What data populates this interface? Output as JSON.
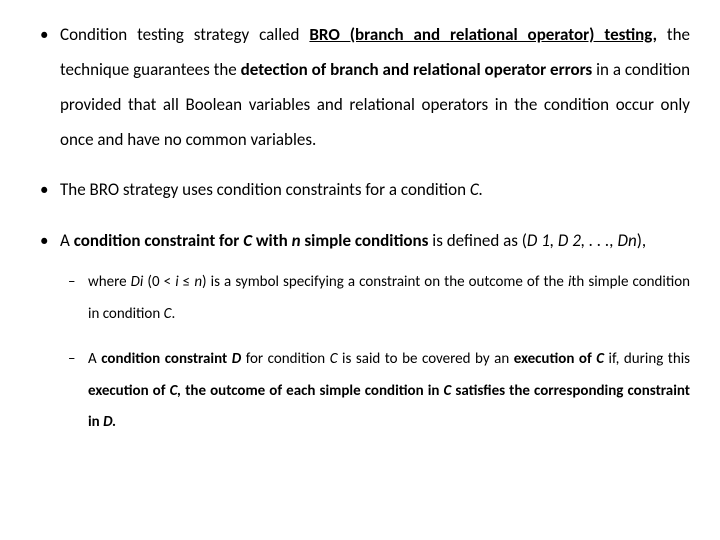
{
  "slide": {
    "bullets": [
      {
        "runs": [
          {
            "t": "Condition testing strategy called "
          },
          {
            "t": "BRO (branch and relational operator) testing,",
            "cls": "bu"
          },
          {
            "t": " the technique guarantees the "
          },
          {
            "t": "detection of branch and relational operator errors",
            "cls": "b"
          },
          {
            "t": " in a condition provided that all Boolean variables and relational operators in the condition occur only once and have no common variables."
          }
        ]
      },
      {
        "runs": [
          {
            "t": "The BRO strategy uses condition constraints for a condition "
          },
          {
            "t": "C.",
            "cls": "i"
          }
        ]
      },
      {
        "runs": [
          {
            "t": "A "
          },
          {
            "t": "condition constraint for ",
            "cls": "b"
          },
          {
            "t": "C",
            "cls": "bi"
          },
          {
            "t": " with ",
            "cls": "b"
          },
          {
            "t": "n",
            "cls": "bi"
          },
          {
            "t": " simple conditions",
            "cls": "b"
          },
          {
            "t": " is defined as ("
          },
          {
            "t": "D 1, D 2, . . ., Dn",
            "cls": "i"
          },
          {
            "t": "),"
          }
        ],
        "sub": [
          {
            "runs": [
              {
                "t": "where "
              },
              {
                "t": "Di ",
                "cls": "i"
              },
              {
                "t": "(0 < "
              },
              {
                "t": "i",
                "cls": "i"
              },
              {
                "t": " ≤ "
              },
              {
                "t": "n",
                "cls": "i"
              },
              {
                "t": ") is a symbol specifying a constraint on the outcome of the "
              },
              {
                "t": "i",
                "cls": "i"
              },
              {
                "t": "th simple condition in condition "
              },
              {
                "t": "C",
                "cls": "i"
              },
              {
                "t": "."
              }
            ]
          },
          {
            "runs": [
              {
                "t": "A "
              },
              {
                "t": "condition constraint ",
                "cls": "b"
              },
              {
                "t": "D",
                "cls": "bi"
              },
              {
                "t": " for condition "
              },
              {
                "t": "C",
                "cls": "i"
              },
              {
                "t": " is said to be covered by an "
              },
              {
                "t": "execution of ",
                "cls": "b"
              },
              {
                "t": "C",
                "cls": "bi"
              },
              {
                "t": " if, during this "
              },
              {
                "t": "execution of ",
                "cls": "b"
              },
              {
                "t": "C,",
                "cls": "bi"
              },
              {
                "t": " the outcome of each simple condition in ",
                "cls": "b"
              },
              {
                "t": "C",
                "cls": "bi"
              },
              {
                "t": " satisfies the corresponding constraint in ",
                "cls": "b"
              },
              {
                "t": "D.",
                "cls": "bi"
              }
            ]
          }
        ]
      }
    ]
  }
}
